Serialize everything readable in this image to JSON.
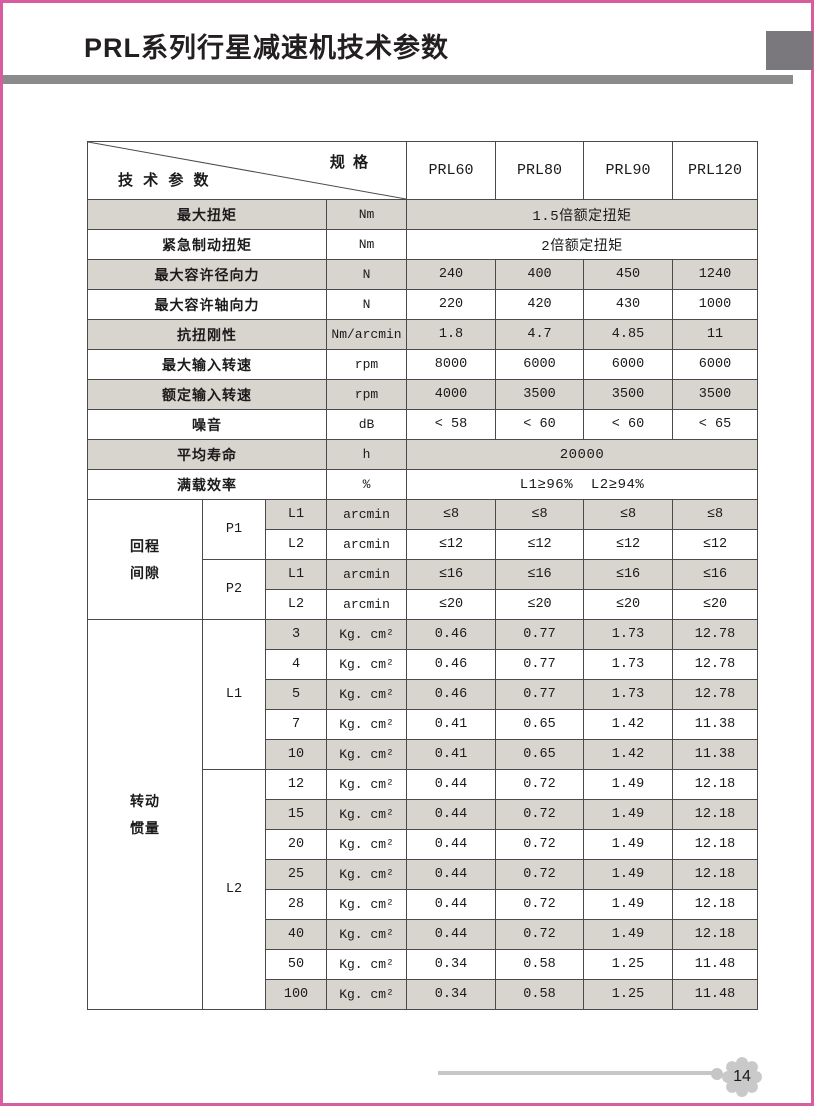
{
  "header": {
    "title": "PRL系列行星减速机技术参数"
  },
  "table": {
    "corner": {
      "spec": "规 格",
      "param": "技 术 参 数"
    },
    "models": [
      "PRL60",
      "PRL80",
      "PRL90",
      "PRL120"
    ],
    "simple_rows": [
      {
        "label": "最大扭矩",
        "unit": "Nm",
        "merged": "1.5倍额定扭矩",
        "shaded": true
      },
      {
        "label": "紧急制动扭矩",
        "unit": "Nm",
        "merged": "2倍额定扭矩",
        "shaded": false
      },
      {
        "label": "最大容许径向力",
        "unit": "N",
        "values": [
          "240",
          "400",
          "450",
          "1240"
        ],
        "shaded": true
      },
      {
        "label": "最大容许轴向力",
        "unit": "N",
        "values": [
          "220",
          "420",
          "430",
          "1000"
        ],
        "shaded": false
      },
      {
        "label": "抗扭刚性",
        "unit": "Nm/arcmin",
        "values": [
          "1.8",
          "4.7",
          "4.85",
          "11"
        ],
        "shaded": true
      },
      {
        "label": "最大输入转速",
        "unit": "rpm",
        "values": [
          "8000",
          "6000",
          "6000",
          "6000"
        ],
        "shaded": false
      },
      {
        "label": "额定输入转速",
        "unit": "rpm",
        "values": [
          "4000",
          "3500",
          "3500",
          "3500"
        ],
        "shaded": true
      },
      {
        "label": "噪音",
        "unit": "dB",
        "values": [
          "< 58",
          "< 60",
          "< 60",
          "< 65"
        ],
        "shaded": false
      },
      {
        "label": "平均寿命",
        "unit": "h",
        "merged": "20000",
        "shaded": true
      },
      {
        "label": "满载效率",
        "unit": "%",
        "merged": "L1≥96%  L2≥94%",
        "shaded": false
      }
    ],
    "backlash": {
      "group_lines": [
        "回程",
        "间隙"
      ],
      "subgroups": [
        {
          "label": "P1",
          "rows": [
            {
              "level": "L1",
              "unit": "arcmin",
              "values": [
                "≤8",
                "≤8",
                "≤8",
                "≤8"
              ],
              "shaded": true
            },
            {
              "level": "L2",
              "unit": "arcmin",
              "values": [
                "≤12",
                "≤12",
                "≤12",
                "≤12"
              ],
              "shaded": false
            }
          ]
        },
        {
          "label": "P2",
          "rows": [
            {
              "level": "L1",
              "unit": "arcmin",
              "values": [
                "≤16",
                "≤16",
                "≤16",
                "≤16"
              ],
              "shaded": true
            },
            {
              "level": "L2",
              "unit": "arcmin",
              "values": [
                "≤20",
                "≤20",
                "≤20",
                "≤20"
              ],
              "shaded": false
            }
          ]
        }
      ]
    },
    "inertia": {
      "group_lines": [
        "转动",
        "惯量"
      ],
      "subgroups": [
        {
          "label": "L1",
          "rows": [
            {
              "ratio": "3",
              "unit": "Kg. cm²",
              "values": [
                "0.46",
                "0.77",
                "1.73",
                "12.78"
              ],
              "shaded": true
            },
            {
              "ratio": "4",
              "unit": "Kg. cm²",
              "values": [
                "0.46",
                "0.77",
                "1.73",
                "12.78"
              ],
              "shaded": false
            },
            {
              "ratio": "5",
              "unit": "Kg. cm²",
              "values": [
                "0.46",
                "0.77",
                "1.73",
                "12.78"
              ],
              "shaded": true
            },
            {
              "ratio": "7",
              "unit": "Kg. cm²",
              "values": [
                "0.41",
                "0.65",
                "1.42",
                "11.38"
              ],
              "shaded": false
            },
            {
              "ratio": "10",
              "unit": "Kg. cm²",
              "values": [
                "0.41",
                "0.65",
                "1.42",
                "11.38"
              ],
              "shaded": true
            }
          ]
        },
        {
          "label": "L2",
          "rows": [
            {
              "ratio": "12",
              "unit": "Kg. cm²",
              "values": [
                "0.44",
                "0.72",
                "1.49",
                "12.18"
              ],
              "shaded": false
            },
            {
              "ratio": "15",
              "unit": "Kg. cm²",
              "values": [
                "0.44",
                "0.72",
                "1.49",
                "12.18"
              ],
              "shaded": true
            },
            {
              "ratio": "20",
              "unit": "Kg. cm²",
              "values": [
                "0.44",
                "0.72",
                "1.49",
                "12.18"
              ],
              "shaded": false
            },
            {
              "ratio": "25",
              "unit": "Kg. cm²",
              "values": [
                "0.44",
                "0.72",
                "1.49",
                "12.18"
              ],
              "shaded": true
            },
            {
              "ratio": "28",
              "unit": "Kg. cm²",
              "values": [
                "0.44",
                "0.72",
                "1.49",
                "12.18"
              ],
              "shaded": false
            },
            {
              "ratio": "40",
              "unit": "Kg. cm²",
              "values": [
                "0.44",
                "0.72",
                "1.49",
                "12.18"
              ],
              "shaded": true
            },
            {
              "ratio": "50",
              "unit": "Kg. cm²",
              "values": [
                "0.34",
                "0.58",
                "1.25",
                "11.48"
              ],
              "shaded": false
            },
            {
              "ratio": "100",
              "unit": "Kg. cm²",
              "values": [
                "0.34",
                "0.58",
                "1.25",
                "11.48"
              ],
              "shaded": true
            }
          ]
        }
      ]
    }
  },
  "footer": {
    "page_number": "14"
  },
  "colors": {
    "accent_pink": "#d85d9f",
    "title_bar_gray": "#8b8b8b",
    "corner_square_gray": "#7a787c",
    "row_shade": "#d8d4ce",
    "cell_border": "#4a4a4a",
    "footer_gray": "#c6c6c6"
  }
}
